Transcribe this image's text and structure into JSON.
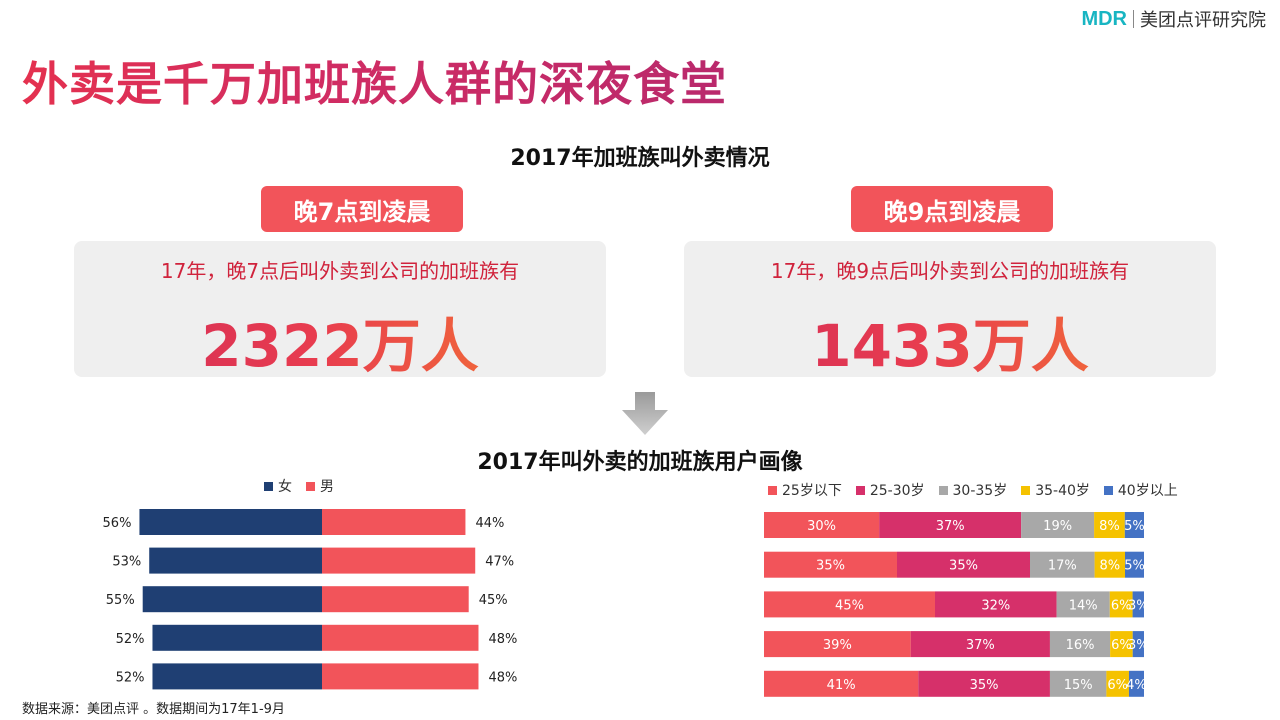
{
  "logo": {
    "mark": "MDR",
    "name": "美团点评研究院"
  },
  "title": "外卖是千万加班族人群的深夜食堂",
  "section1_title": "2017年加班族叫外卖情况",
  "cards": [
    {
      "pill": "晚7点到凌晨",
      "desc": "17年，晚7点后叫外卖到公司的加班族有",
      "value": "2322万人"
    },
    {
      "pill": "晚9点到凌晨",
      "desc": "17年，晚9点后叫外卖到公司的加班族有",
      "value": "1433万人"
    }
  ],
  "section2_title": "2017年叫外卖的加班族用户画像",
  "footnote": "数据来源：美团点评 。数据期间为17年1-9月",
  "chart_data": [
    {
      "type": "bar",
      "orientation": "horizontal",
      "stacked": true,
      "legend_position": "top",
      "series": [
        {
          "name": "女",
          "color": "#1f3f73",
          "values": [
            56,
            53,
            55,
            52,
            52
          ],
          "labels": [
            "56%",
            "53%",
            "55%",
            "52%",
            "52%"
          ]
        },
        {
          "name": "男",
          "color": "#f2545a",
          "values": [
            44,
            47,
            45,
            48,
            48
          ],
          "labels": [
            "44%",
            "47%",
            "45%",
            "48%",
            "48%"
          ]
        }
      ]
    },
    {
      "type": "bar",
      "orientation": "horizontal",
      "stacked": true,
      "legend_position": "top",
      "series": [
        {
          "name": "25岁以下",
          "color": "#f2545a",
          "values": [
            30,
            35,
            45,
            39,
            41
          ],
          "labels": [
            "30%",
            "35%",
            "45%",
            "39%",
            "41%"
          ]
        },
        {
          "name": "25-30岁",
          "color": "#d6306a",
          "values": [
            37,
            35,
            32,
            37,
            35
          ],
          "labels": [
            "37%",
            "35%",
            "32%",
            "37%",
            "35%"
          ]
        },
        {
          "name": "30-35岁",
          "color": "#a8a8a8",
          "values": [
            19,
            17,
            14,
            16,
            15
          ],
          "labels": [
            "19%",
            "17%",
            "14%",
            "16%",
            "15%"
          ]
        },
        {
          "name": "35-40岁",
          "color": "#f5c200",
          "values": [
            8,
            8,
            6,
            6,
            6
          ],
          "labels": [
            "8%",
            "8%",
            "6%",
            "6%",
            "6%"
          ]
        },
        {
          "name": "40岁以上",
          "color": "#4472c4",
          "values": [
            5,
            5,
            3,
            3,
            4
          ],
          "labels": [
            "5%",
            "5%",
            "3%",
            "3%",
            "4%"
          ]
        }
      ]
    }
  ]
}
